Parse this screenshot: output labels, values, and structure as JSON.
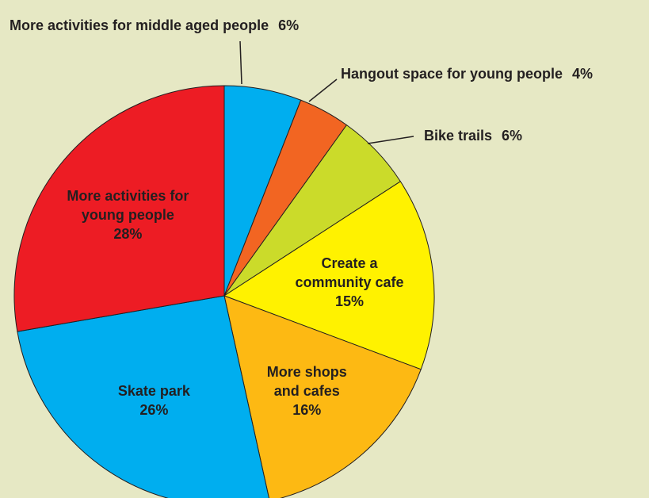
{
  "chart_data": {
    "type": "pie",
    "categories": [
      "More activities for middle aged people",
      "Hangout space for young people",
      "Bike trails",
      "Create a community cafe",
      "More shops and cafes",
      "Skate park",
      "More activities for young people"
    ],
    "values": [
      6,
      4,
      6,
      15,
      16,
      26,
      28
    ],
    "value_labels": [
      "6%",
      "4%",
      "6%",
      "15%",
      "16%",
      "26%",
      "28%"
    ],
    "colors": [
      "#00aeef",
      "#f26522",
      "#cbdb2a",
      "#fff200",
      "#fdb913",
      "#00aeef",
      "#ed1c24"
    ]
  }
}
